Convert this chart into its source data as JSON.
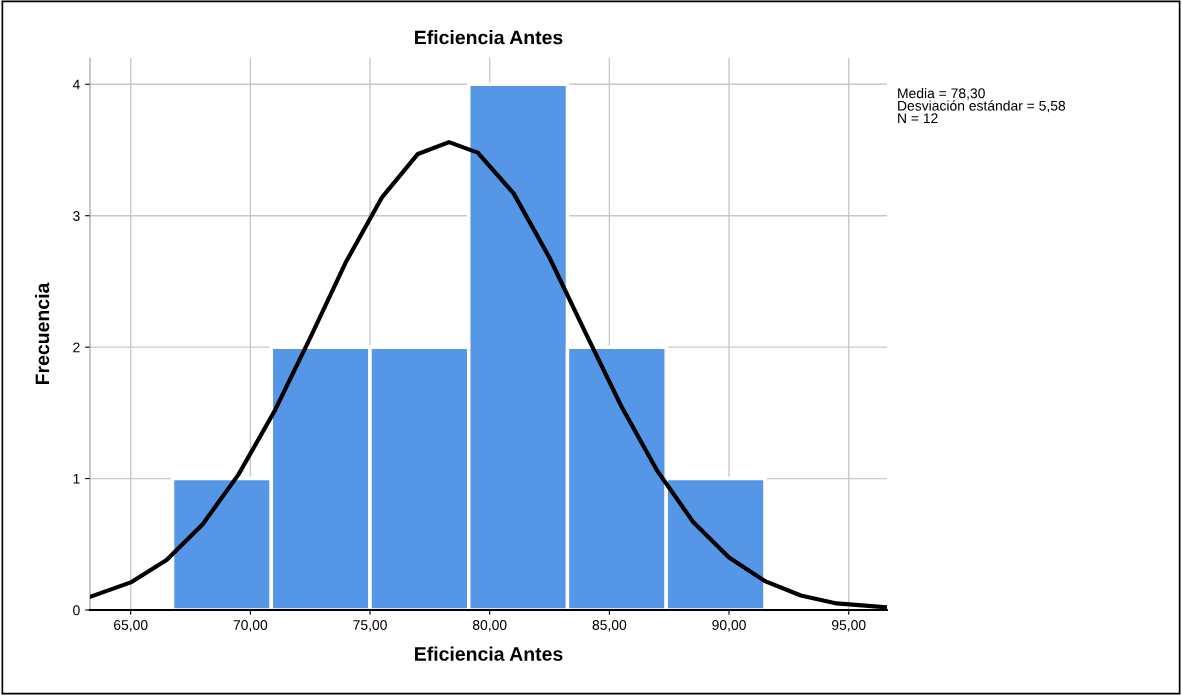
{
  "chart_data": {
    "type": "histogram",
    "title": "Eficiencia Antes",
    "xlabel": "Eficiencia Antes",
    "ylabel": "Frecuencia",
    "bins": [
      66.75,
      70.875,
      75.0,
      79.125,
      83.25,
      87.375,
      91.5
    ],
    "values": [
      1,
      2,
      2,
      4,
      2,
      1
    ],
    "color": "#5596e6",
    "series": [
      {
        "type": "line",
        "color": "#000000",
        "x": [
          63.3,
          65,
          66.5,
          68,
          69.5,
          71,
          72.5,
          74,
          75.5,
          77,
          78.3,
          79.5,
          81,
          82.5,
          84,
          85.5,
          87,
          88.5,
          90,
          91.5,
          93,
          94.5,
          96.6
        ],
        "values": [
          0.1,
          0.21,
          0.38,
          0.65,
          1.03,
          1.51,
          2.07,
          2.65,
          3.14,
          3.47,
          3.56,
          3.48,
          3.17,
          2.68,
          2.11,
          1.55,
          1.06,
          0.67,
          0.4,
          0.22,
          0.11,
          0.05,
          0.02
        ]
      }
    ],
    "xlim": [
      63.3,
      96.6
    ],
    "ylim": [
      0,
      4.2
    ],
    "xticks": [
      {
        "value": 65,
        "label": "65,00"
      },
      {
        "value": 70,
        "label": "70,00"
      },
      {
        "value": 75,
        "label": "75,00"
      },
      {
        "value": 80,
        "label": "80,00"
      },
      {
        "value": 85,
        "label": "85,00"
      },
      {
        "value": 90,
        "label": "90,00"
      },
      {
        "value": 95,
        "label": "95,00"
      }
    ],
    "yticks": [
      0,
      1,
      2,
      3,
      4
    ],
    "grid": true,
    "annotations": [
      "Media = 78,30\nDesviación estándar = 5,58\nN = 12"
    ]
  }
}
